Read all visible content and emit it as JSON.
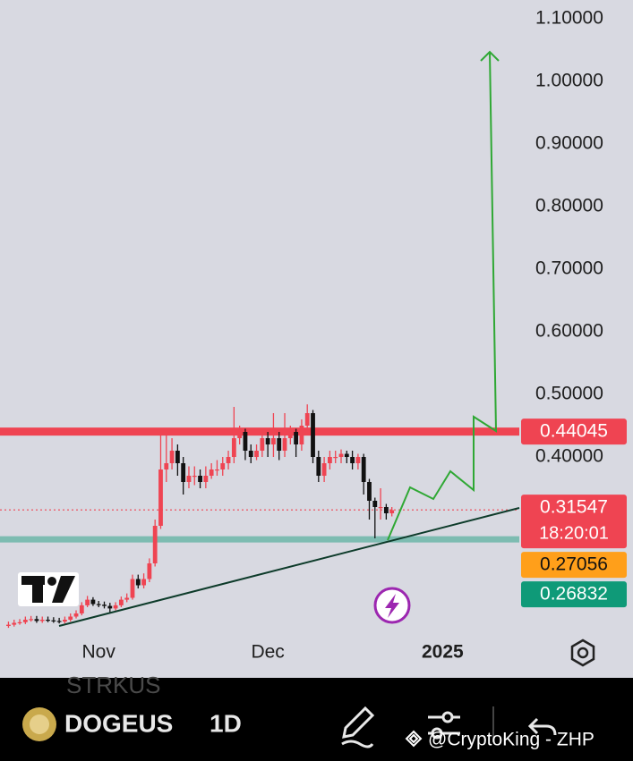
{
  "app": {
    "ghost_symbol": "STRKUS",
    "symbol": "DOGEUS",
    "interval": "1D",
    "watermark": "@CryptoKing - ZHP"
  },
  "chart_data": {
    "type": "candlestick",
    "x": [
      -16,
      -15,
      -14,
      -13,
      -12,
      -11,
      -10,
      -9,
      -8,
      -7,
      -6,
      -5,
      -4,
      -3,
      -2,
      -1,
      0,
      1,
      2,
      3,
      4,
      5,
      6,
      7,
      8,
      9,
      10,
      11,
      12,
      13,
      14,
      15,
      16,
      17,
      18,
      19,
      20,
      21,
      22,
      23,
      24,
      25,
      26,
      27,
      28,
      29,
      30,
      31,
      32,
      33,
      34,
      35,
      36,
      37,
      38,
      39,
      40,
      41,
      42,
      43,
      44,
      45,
      46,
      47,
      48,
      49,
      50,
      51,
      52
    ],
    "open": [
      0.13,
      0.132,
      0.135,
      0.136,
      0.14,
      0.141,
      0.138,
      0.14,
      0.139,
      0.138,
      0.137,
      0.14,
      0.145,
      0.15,
      0.163,
      0.172,
      0.165,
      0.164,
      0.162,
      0.158,
      0.163,
      0.172,
      0.175,
      0.205,
      0.195,
      0.205,
      0.23,
      0.29,
      0.38,
      0.39,
      0.41,
      0.39,
      0.36,
      0.37,
      0.37,
      0.36,
      0.37,
      0.38,
      0.38,
      0.39,
      0.4,
      0.43,
      0.44,
      0.41,
      0.4,
      0.41,
      0.43,
      0.42,
      0.43,
      0.41,
      0.43,
      0.44,
      0.42,
      0.45,
      0.47,
      0.4,
      0.37,
      0.39,
      0.4,
      0.4,
      0.405,
      0.4,
      0.39,
      0.4,
      0.36,
      0.33,
      0.32,
      0.32,
      0.31
    ],
    "high": [
      0.137,
      0.14,
      0.141,
      0.145,
      0.146,
      0.146,
      0.145,
      0.145,
      0.144,
      0.143,
      0.145,
      0.15,
      0.155,
      0.168,
      0.178,
      0.176,
      0.17,
      0.169,
      0.167,
      0.168,
      0.177,
      0.182,
      0.212,
      0.212,
      0.214,
      0.238,
      0.3,
      0.44,
      0.44,
      0.43,
      0.42,
      0.4,
      0.385,
      0.385,
      0.38,
      0.385,
      0.39,
      0.395,
      0.4,
      0.41,
      0.48,
      0.45,
      0.445,
      0.42,
      0.42,
      0.44,
      0.44,
      0.47,
      0.44,
      0.47,
      0.45,
      0.445,
      0.46,
      0.484,
      0.475,
      0.41,
      0.4,
      0.41,
      0.41,
      0.412,
      0.41,
      0.41,
      0.405,
      0.405,
      0.365,
      0.335,
      0.35,
      0.325,
      0.32
    ],
    "low": [
      0.127,
      0.129,
      0.132,
      0.133,
      0.137,
      0.135,
      0.135,
      0.136,
      0.135,
      0.134,
      0.134,
      0.137,
      0.142,
      0.147,
      0.16,
      0.162,
      0.16,
      0.158,
      0.152,
      0.155,
      0.16,
      0.168,
      0.172,
      0.19,
      0.19,
      0.2,
      0.225,
      0.285,
      0.36,
      0.38,
      0.37,
      0.34,
      0.35,
      0.355,
      0.35,
      0.35,
      0.365,
      0.37,
      0.37,
      0.38,
      0.39,
      0.42,
      0.395,
      0.39,
      0.395,
      0.4,
      0.4,
      0.4,
      0.395,
      0.4,
      0.42,
      0.4,
      0.41,
      0.44,
      0.39,
      0.36,
      0.36,
      0.38,
      0.39,
      0.39,
      0.39,
      0.38,
      0.38,
      0.34,
      0.3,
      0.27,
      0.3,
      0.3,
      0.305
    ],
    "close": [
      0.132,
      0.135,
      0.136,
      0.14,
      0.141,
      0.138,
      0.14,
      0.139,
      0.138,
      0.137,
      0.14,
      0.145,
      0.15,
      0.163,
      0.172,
      0.165,
      0.164,
      0.162,
      0.158,
      0.163,
      0.172,
      0.175,
      0.205,
      0.195,
      0.205,
      0.23,
      0.29,
      0.38,
      0.39,
      0.41,
      0.39,
      0.36,
      0.37,
      0.37,
      0.36,
      0.37,
      0.38,
      0.38,
      0.39,
      0.4,
      0.43,
      0.44,
      0.41,
      0.4,
      0.41,
      0.43,
      0.42,
      0.43,
      0.41,
      0.43,
      0.44,
      0.42,
      0.45,
      0.47,
      0.4,
      0.37,
      0.39,
      0.4,
      0.4,
      0.405,
      0.4,
      0.39,
      0.4,
      0.36,
      0.33,
      0.32,
      0.32,
      0.31,
      0.315
    ],
    "up_color": "#ef4452",
    "down_color": "#111111",
    "xlim": [
      -17.5,
      74.6
    ],
    "xticks": [
      {
        "value": 0,
        "label": "Nov"
      },
      {
        "value": 30,
        "label": "Dec"
      },
      {
        "value": 61,
        "label": "2025"
      }
    ],
    "ylim": [
      0.13,
      1.13
    ],
    "yticks": [
      {
        "value": 1.1,
        "label": "1.10000"
      },
      {
        "value": 1.0,
        "label": "1.00000"
      },
      {
        "value": 0.9,
        "label": "0.90000"
      },
      {
        "value": 0.8,
        "label": "0.80000"
      },
      {
        "value": 0.7,
        "label": "0.70000"
      },
      {
        "value": 0.6,
        "label": "0.60000"
      },
      {
        "value": 0.5,
        "label": "0.50000"
      },
      {
        "value": 0.4,
        "label": "0.40000"
      }
    ],
    "markers": [
      {
        "value": 0.44045,
        "color": "#ef4452",
        "text_color": "#ffffff",
        "line": "solid"
      },
      {
        "value": 0.31547,
        "color": "#ef4452",
        "text_color": "#ffffff",
        "line": "dotted",
        "countdown": "18:20:01"
      },
      {
        "value": 0.27056,
        "color": "#ff9f1a",
        "text_color": "#111111",
        "line": "none"
      },
      {
        "value": 0.26832,
        "color": "#0f9a78",
        "text_color": "#ffffff",
        "line": "band"
      }
    ]
  }
}
